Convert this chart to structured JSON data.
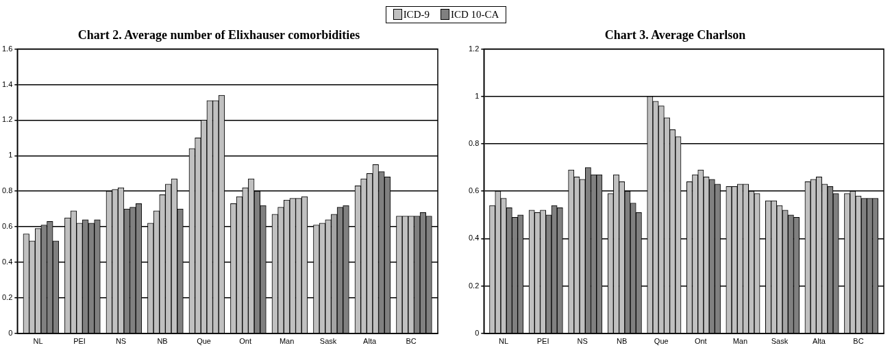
{
  "chart_data": [
    {
      "type": "bar",
      "title": "Chart 2. Average number of Elixhauser comorbidities",
      "stacked": true,
      "grid": "y",
      "legend": "top",
      "categories": [
        null,
        null,
        null,
        "NL",
        null,
        null,
        null,
        null,
        null,
        null,
        "PEI",
        null,
        null,
        null,
        null,
        null,
        null,
        "NS",
        null,
        null,
        null,
        null,
        null,
        null,
        "NB",
        null,
        null,
        null,
        null,
        null,
        null,
        "Que",
        null,
        null,
        null,
        null,
        null,
        null,
        "Ont",
        null,
        null,
        null,
        null,
        null,
        null,
        "Man",
        null,
        null,
        null,
        null,
        null,
        null,
        "Sask",
        null,
        null,
        null,
        null,
        null,
        null,
        "Alta",
        null,
        null,
        null,
        null,
        null,
        null,
        "BC",
        null,
        null,
        null,
        null
      ],
      "ylim": [
        0,
        1.6
      ],
      "yticks": [
        0,
        0.2,
        0.4,
        0.6,
        0.8,
        1,
        1.2,
        1.4,
        1.6
      ],
      "series": [
        {
          "name": "ICD-9",
          "color": "#c0c0c0",
          "values": [
            null,
            0.56,
            0.52,
            0.59,
            null,
            null,
            null,
            null,
            0.65,
            0.69,
            0.62,
            null,
            null,
            null,
            null,
            0.8,
            0.81,
            0.82,
            null,
            null,
            null,
            null,
            0.62,
            0.69,
            0.78,
            0.84,
            0.87,
            null,
            null,
            1.04,
            1.1,
            1.2,
            1.31,
            1.31,
            1.34,
            null,
            0.73,
            0.77,
            0.82,
            0.87,
            null,
            null,
            null,
            0.67,
            0.71,
            0.75,
            0.76,
            0.76,
            0.77,
            null,
            0.61,
            0.62,
            0.64,
            null,
            null,
            null,
            null,
            0.83,
            0.87,
            0.9,
            0.95,
            null,
            null,
            null,
            0.66,
            0.66,
            0.66,
            null,
            null,
            null,
            null
          ]
        },
        {
          "name": "ICD 10-CA",
          "color": "#808080",
          "values": [
            null,
            null,
            null,
            null,
            0.61,
            0.63,
            0.52,
            null,
            null,
            null,
            null,
            0.64,
            0.62,
            0.64,
            null,
            null,
            null,
            null,
            0.7,
            0.71,
            0.73,
            null,
            null,
            null,
            null,
            null,
            null,
            0.7,
            null,
            null,
            null,
            null,
            null,
            null,
            null,
            null,
            null,
            null,
            null,
            null,
            0.8,
            0.72,
            null,
            null,
            null,
            null,
            null,
            null,
            null,
            null,
            null,
            null,
            null,
            null,
            0.71,
            0.72,
            null,
            null,
            null,
            null,
            null,
            0.91,
            0.88,
            null,
            null,
            null,
            null,
            0.66,
            0.68,
            0.66,
            null
          ]
        },
        {
          "color": "#a4a4a4",
          "values": [
            null,
            null,
            null,
            null,
            null,
            null,
            null,
            null,
            null,
            null,
            null,
            null,
            null,
            null,
            null,
            null,
            null,
            null,
            null,
            null,
            null,
            null,
            null,
            null,
            null,
            null,
            null,
            null,
            null,
            null,
            null,
            null,
            null,
            null,
            null,
            null,
            null,
            null,
            null,
            null,
            null,
            null,
            null,
            null,
            null,
            null,
            null,
            null,
            null,
            null,
            null,
            null,
            null,
            0.67,
            null,
            null,
            null,
            null,
            null,
            null,
            null,
            null,
            null,
            null,
            null,
            null,
            null,
            null,
            null,
            null,
            null
          ]
        }
      ]
    },
    {
      "type": "bar",
      "title": "Chart 3. Average Charlson",
      "stacked": true,
      "grid": "y",
      "categories": [
        null,
        null,
        null,
        "NL",
        null,
        null,
        null,
        null,
        null,
        null,
        "PEI",
        null,
        null,
        null,
        null,
        null,
        null,
        "NS",
        null,
        null,
        null,
        null,
        null,
        null,
        "NB",
        null,
        null,
        null,
        null,
        null,
        null,
        "Que",
        null,
        null,
        null,
        null,
        null,
        null,
        "Ont",
        null,
        null,
        null,
        null,
        null,
        null,
        "Man",
        null,
        null,
        null,
        null,
        null,
        null,
        "Sask",
        null,
        null,
        null,
        null,
        null,
        null,
        "Alta",
        null,
        null,
        null,
        null,
        null,
        null,
        "BC",
        null,
        null,
        null,
        null
      ],
      "ylim": [
        0,
        1.2
      ],
      "yticks": [
        0,
        0.2,
        0.4,
        0.6,
        0.8,
        1,
        1.2
      ],
      "series": [
        {
          "color": "#c0c0c0",
          "values": [
            null,
            0.54,
            0.6,
            0.57,
            null,
            null,
            null,
            null,
            0.52,
            0.51,
            0.52,
            null,
            null,
            null,
            null,
            0.69,
            0.66,
            0.65,
            null,
            null,
            null,
            null,
            0.59,
            0.67,
            0.64,
            null,
            null,
            null,
            null,
            1.0,
            0.98,
            0.96,
            0.91,
            0.86,
            0.83,
            null,
            0.64,
            0.67,
            0.69,
            0.66,
            null,
            null,
            null,
            0.62,
            0.62,
            0.63,
            0.63,
            0.6,
            0.59,
            null,
            0.56,
            0.56,
            0.54,
            null,
            null,
            null,
            null,
            0.64,
            0.65,
            0.66,
            0.63,
            null,
            null,
            null,
            0.59,
            0.6,
            0.58,
            null,
            null,
            null,
            null
          ]
        },
        {
          "color": "#808080",
          "values": [
            null,
            null,
            null,
            null,
            0.53,
            0.49,
            0.5,
            null,
            null,
            null,
            null,
            0.5,
            0.54,
            0.53,
            null,
            null,
            null,
            null,
            0.7,
            0.67,
            0.67,
            null,
            null,
            null,
            null,
            0.6,
            0.55,
            0.51,
            null,
            null,
            null,
            null,
            null,
            null,
            null,
            null,
            null,
            null,
            null,
            null,
            0.65,
            0.63,
            null,
            null,
            null,
            null,
            null,
            null,
            null,
            null,
            null,
            null,
            null,
            null,
            0.5,
            0.49,
            null,
            null,
            null,
            null,
            null,
            0.62,
            0.59,
            null,
            null,
            null,
            null,
            0.57,
            0.57,
            0.57,
            null
          ]
        },
        {
          "color": "#a4a4a4",
          "values": [
            null,
            null,
            null,
            null,
            null,
            null,
            null,
            null,
            null,
            null,
            null,
            null,
            null,
            null,
            null,
            null,
            null,
            null,
            null,
            null,
            null,
            null,
            null,
            null,
            null,
            null,
            null,
            null,
            null,
            null,
            null,
            null,
            null,
            null,
            null,
            null,
            null,
            null,
            null,
            null,
            null,
            null,
            null,
            null,
            null,
            null,
            null,
            null,
            null,
            null,
            null,
            null,
            null,
            0.52,
            null,
            null,
            null,
            null,
            null,
            null,
            null,
            null,
            null,
            null,
            null,
            null,
            null,
            null,
            null,
            null,
            null
          ]
        }
      ]
    }
  ]
}
